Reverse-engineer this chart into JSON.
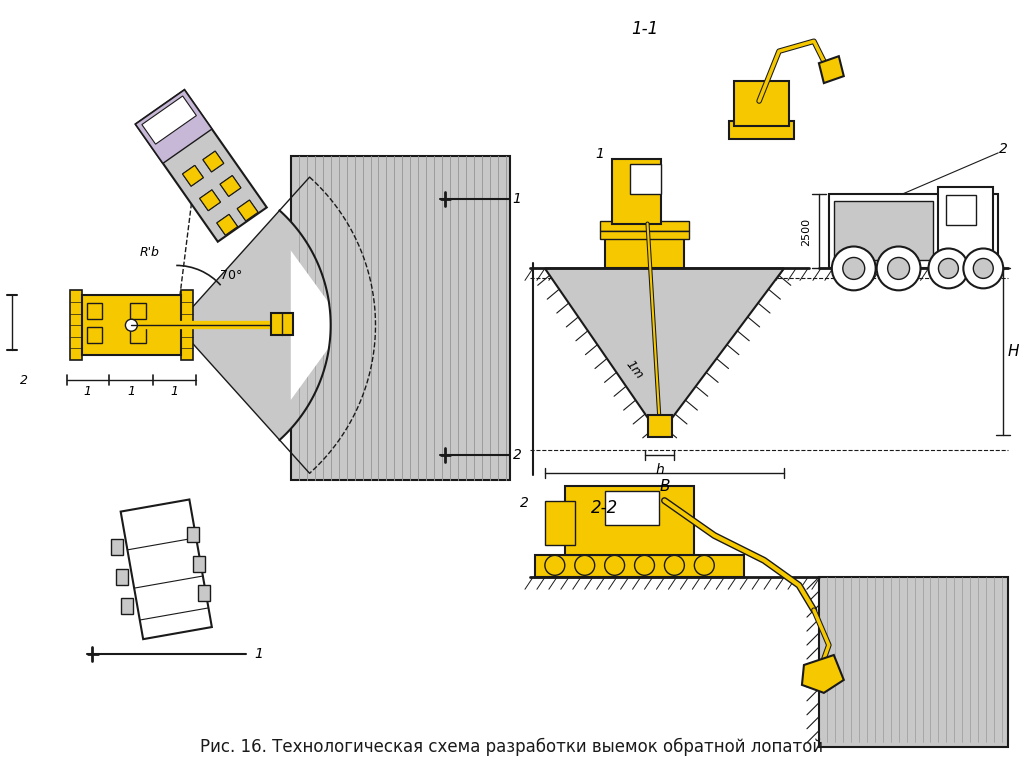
{
  "title": "Рис. 16. Технологическая схема разработки выемок обратной лопатой",
  "title_fontsize": 12,
  "bg_color": "#ffffff",
  "line_color": "#1a1a1a",
  "yellow": "#F5C800",
  "yellow2": "#E8B800",
  "gray_light": "#C8C8C8",
  "gray_med": "#B0B0B0",
  "gray_dark": "#909090",
  "blue_light": "#C8D0E0",
  "purple_light": "#C8B8D8",
  "hatch_gray": "#888888",
  "label_11": "1-1",
  "label_22": "2-2",
  "label_Rb": "R'b",
  "label_70": "70°",
  "label_1m": "1m",
  "label_h": "h",
  "label_B": "B",
  "label_H": "H",
  "label_2500": "2500",
  "label_1": "1",
  "label_2": "2"
}
